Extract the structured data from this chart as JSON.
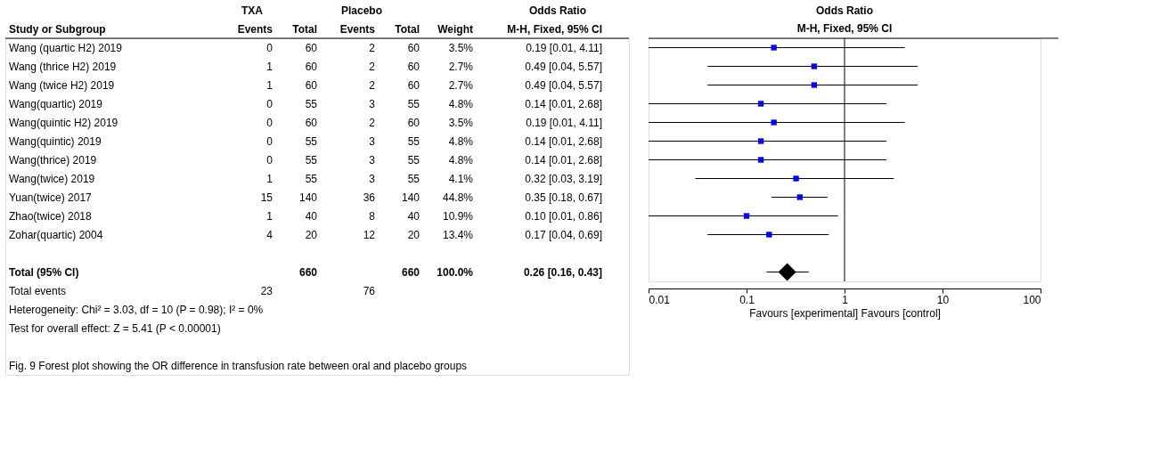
{
  "chart_data": [
    {
      "type": "other",
      "categories": [
        "Study or Subgroup",
        "Events",
        "Total",
        "Events",
        "Total",
        "Weight",
        "M-H, Fixed, 95% CI"
      ],
      "cell_labels": [
        [
          "Wang (quartic H2) 2019",
          "0",
          "60",
          "2",
          "60",
          "3.5%",
          "0.19 [0.01, 4.11]"
        ],
        [
          "Wang (thrice H2) 2019",
          "1",
          "60",
          "2",
          "60",
          "2.7%",
          "0.49 [0.04, 5.57]"
        ],
        [
          "Wang (twice H2) 2019",
          "1",
          "60",
          "2",
          "60",
          "2.7%",
          "0.49 [0.04, 5.57]"
        ],
        [
          "Wang(quartic) 2019",
          "0",
          "55",
          "3",
          "55",
          "4.8%",
          "0.14 [0.01, 2.68]"
        ],
        [
          "Wang(quintic H2) 2019",
          "0",
          "60",
          "2",
          "60",
          "3.5%",
          "0.19 [0.01, 4.11]"
        ],
        [
          "Wang(quintic) 2019",
          "0",
          "55",
          "3",
          "55",
          "4.8%",
          "0.14 [0.01, 2.68]"
        ],
        [
          "Wang(thrice) 2019",
          "0",
          "55",
          "3",
          "55",
          "4.8%",
          "0.14 [0.01, 2.68]"
        ],
        [
          "Wang(twice) 2019",
          "1",
          "55",
          "3",
          "55",
          "4.1%",
          "0.32 [0.03, 3.19]"
        ],
        [
          "Yuan(twice) 2017",
          "15",
          "140",
          "36",
          "140",
          "44.8%",
          "0.35 [0.18, 0.67]"
        ],
        [
          "Zhao(twice) 2018",
          "1",
          "40",
          "8",
          "40",
          "10.9%",
          "0.10 [0.01, 0.86]"
        ],
        [
          "Zohar(quartic) 2004",
          "4",
          "20",
          "12",
          "20",
          "13.4%",
          "0.17 [0.04, 0.69]"
        ],
        null,
        [
          "Total (95% CI)",
          null,
          "660",
          null,
          "660",
          "100.0%",
          "0.26 [0.16, 0.43]"
        ],
        [
          "Total events",
          "23",
          null,
          "76"
        ]
      ],
      "annotations": [
        "TXA",
        "Placebo",
        "Odds Ratio",
        "Heterogeneity: Chi² = 3.03, df = 10 (P = 0.98); I² = 0%",
        "Test for overall effect: Z = 5.41 (P < 0.00001)",
        "Fig. 9 Forest plot showing the OR difference in transfusion rate between oral and placebo groups"
      ]
    },
    {
      "type": "scatter",
      "orientation": "horizontal",
      "title": "Odds Ratio",
      "subtitle": "M-H, Fixed, 95% CI",
      "xlabel": "Favours [experimental]    Favours [control]",
      "categories": [
        null,
        null,
        null,
        null,
        null,
        null,
        null,
        null,
        null,
        null,
        null,
        null,
        null
      ],
      "series": [
        {
          "color": "#0000ff",
          "marker": "square",
          "values": [
            0.19,
            0.49,
            0.49,
            0.14,
            0.19,
            0.14,
            0.14,
            0.32,
            0.35,
            0.1,
            0.17,
            null,
            null
          ],
          "errors": [
            [
              0.01,
              4.11
            ],
            [
              0.04,
              5.57
            ],
            [
              0.04,
              5.57
            ],
            [
              0.01,
              2.68
            ],
            [
              0.01,
              4.11
            ],
            [
              0.01,
              2.68
            ],
            [
              0.01,
              2.68
            ],
            [
              0.03,
              3.19
            ],
            [
              0.18,
              0.67
            ],
            [
              0.01,
              0.86
            ],
            [
              0.04,
              0.69
            ],
            null,
            null
          ]
        },
        {
          "color": "#000000",
          "marker": "diamond",
          "values": [
            null,
            null,
            null,
            null,
            null,
            null,
            null,
            null,
            null,
            null,
            null,
            null,
            0.26
          ],
          "errors": [
            null,
            null,
            null,
            null,
            null,
            null,
            null,
            null,
            null,
            null,
            null,
            null,
            [
              0.16,
              0.43
            ]
          ]
        }
      ],
      "log": "x",
      "xlim": [
        0.01,
        100
      ],
      "xticks": [
        0.01,
        0.1,
        1,
        10,
        100
      ],
      "ref_lines": [
        {
          "axis": "x",
          "value": 1,
          "color": "#000000"
        }
      ],
      "grid": false,
      "tick_labels": "x"
    }
  ]
}
